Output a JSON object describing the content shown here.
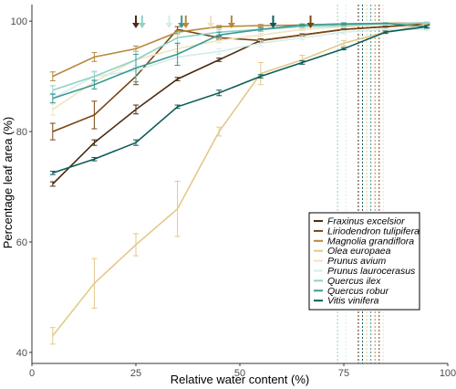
{
  "chart_data": {
    "type": "line",
    "xlabel": "Relative water content (%)",
    "ylabel": "Percentage leaf area (%)",
    "xlim": [
      0,
      100
    ],
    "ylim": [
      38,
      103
    ],
    "x_ticks": [
      "0",
      "25",
      "50",
      "75",
      "100"
    ],
    "y_ticks": [
      "40",
      "60",
      "80",
      "100"
    ],
    "grid": false,
    "legend_position": "bottom-right",
    "series": [
      {
        "name": "Fraxinus excelsior",
        "color": "#4a2d12",
        "x": [
          5,
          15,
          25,
          35,
          45,
          55,
          65,
          75,
          85,
          95
        ],
        "y": [
          70.5,
          78,
          84,
          89.5,
          93,
          96.5,
          97.5,
          98.5,
          99,
          99.5
        ],
        "err": [
          0.4,
          0.5,
          0.8,
          0.3,
          0.3,
          0.3,
          0.2,
          0.2,
          0.1,
          0.1
        ]
      },
      {
        "name": "Liriodendron tulipifera",
        "color": "#7a4512",
        "x": [
          5,
          15,
          25,
          35,
          45,
          55,
          65,
          75,
          85,
          95
        ],
        "y": [
          80,
          83,
          90,
          98.5,
          97,
          96.5,
          97.5,
          98.5,
          99,
          99.5
        ],
        "err": [
          1.5,
          2.5,
          1.5,
          0.5,
          0.3,
          0.3,
          0.2,
          0.2,
          0.1,
          0.1
        ]
      },
      {
        "name": "Magnolia grandiflora",
        "color": "#b8893a",
        "x": [
          5,
          15,
          25,
          35,
          45,
          55,
          65,
          75,
          85,
          95
        ],
        "y": [
          90,
          93.5,
          95,
          98,
          99,
          99.2,
          99.3,
          99.5,
          99.6,
          99.7
        ],
        "err": [
          0.8,
          0.8,
          0.5,
          0.3,
          0.2,
          0.2,
          0.1,
          0.1,
          0.1,
          0.1
        ]
      },
      {
        "name": "Olea europaea",
        "color": "#e3c98a",
        "x": [
          5,
          15,
          25,
          35,
          45,
          55,
          65,
          75,
          85,
          95
        ],
        "y": [
          43,
          52.5,
          59.5,
          66,
          80,
          90.5,
          93,
          96,
          98,
          99.5
        ],
        "err": [
          1.5,
          4.5,
          2,
          5,
          0.8,
          2,
          0.8,
          0.5,
          0.3,
          0.2
        ]
      },
      {
        "name": "Prunus avium",
        "color": "#f0e4c0",
        "x": [
          5,
          15,
          25,
          35,
          45,
          55,
          65,
          75,
          85,
          95
        ],
        "y": [
          84,
          89,
          93,
          95,
          96.5,
          97.5,
          98.5,
          99,
          99.5,
          99.7
        ],
        "err": [
          1,
          1,
          1,
          0.6,
          0.4,
          0.3,
          0.2,
          0.2,
          0.1,
          0.1
        ]
      },
      {
        "name": "Prunus laurocerasus",
        "color": "#d5ece8",
        "x": [
          5,
          15,
          25,
          35,
          45,
          55,
          65,
          75,
          85,
          95
        ],
        "y": [
          86,
          90,
          91,
          93.5,
          94.5,
          96,
          97,
          98,
          98.5,
          98.5
        ],
        "err": [
          1,
          1,
          1,
          1,
          0.5,
          0.5,
          0.4,
          0.3,
          0.2,
          0.2
        ]
      },
      {
        "name": "Quercus ilex",
        "color": "#8fd1c7",
        "x": [
          5,
          15,
          25,
          35,
          45,
          55,
          65,
          75,
          85,
          95
        ],
        "y": [
          87.5,
          90,
          93,
          97,
          98,
          98.5,
          99,
          99.2,
          99.5,
          99.7
        ],
        "err": [
          0.8,
          0.8,
          1.5,
          1,
          0.5,
          0.3,
          0.2,
          0.2,
          0.1,
          0.1
        ]
      },
      {
        "name": "Quercus robur",
        "color": "#3a9a92",
        "x": [
          5,
          15,
          25,
          35,
          45,
          55,
          65,
          75,
          85,
          95
        ],
        "y": [
          86,
          88.5,
          91.5,
          94,
          97.5,
          98.5,
          99.3,
          99.5,
          99.6,
          99
        ],
        "err": [
          0.8,
          0.8,
          2.5,
          2,
          0.5,
          0.3,
          0.2,
          0.2,
          0.1,
          0.3
        ]
      },
      {
        "name": "Vitis vinifera",
        "color": "#0e5c5a",
        "x": [
          5,
          15,
          25,
          35,
          45,
          55,
          65,
          75,
          85,
          95
        ],
        "y": [
          72.5,
          75,
          78,
          84.5,
          87,
          90,
          92.5,
          95,
          98,
          99
        ],
        "err": [
          0.3,
          0.3,
          0.5,
          0.3,
          0.5,
          0.3,
          0.3,
          0.2,
          0.2,
          0.2
        ]
      }
    ],
    "arrows": [
      {
        "x": 25,
        "color": "#4a2d12"
      },
      {
        "x": 26.5,
        "color": "#8fd1c7"
      },
      {
        "x": 33,
        "color": "#d5ece8"
      },
      {
        "x": 36,
        "color": "#3a9a92"
      },
      {
        "x": 37,
        "color": "#b8893a"
      },
      {
        "x": 43,
        "color": "#f0e4c0"
      },
      {
        "x": 48,
        "color": "#b8893a"
      },
      {
        "x": 58,
        "color": "#0e5c5a"
      },
      {
        "x": 67,
        "color": "#7a4512"
      }
    ],
    "vlines": [
      {
        "x": 73.5,
        "color": "#8fd1c7"
      },
      {
        "x": 75.5,
        "color": "#d5ece8"
      },
      {
        "x": 78.5,
        "color": "#4a2d12"
      },
      {
        "x": 79.5,
        "color": "#0e5c5a"
      },
      {
        "x": 80.5,
        "color": "#e3c98a"
      },
      {
        "x": 81.5,
        "color": "#3a9a92"
      },
      {
        "x": 82.5,
        "color": "#b8893a"
      },
      {
        "x": 83.5,
        "color": "#7a4512"
      },
      {
        "x": 84.5,
        "color": "#f0e4c0"
      }
    ]
  }
}
